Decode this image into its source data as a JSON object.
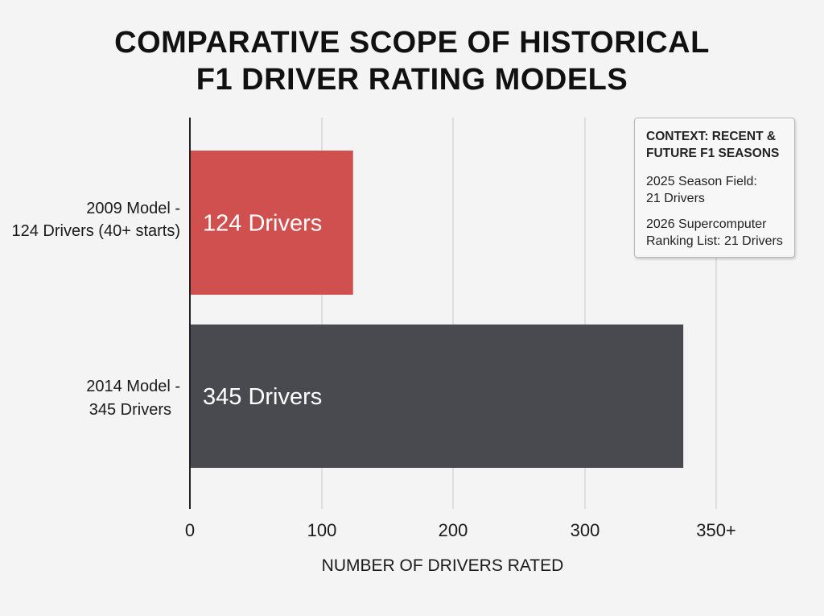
{
  "chart_data": {
    "type": "bar",
    "orientation": "horizontal",
    "title": "COMPARATIVE SCOPE OF HISTORICAL F1 DRIVER RATING MODELS",
    "title_lines": [
      "COMPARATIVE SCOPE OF HISTORICAL",
      "F1 DRIVER RATING MODELS"
    ],
    "categories": [
      {
        "line1": "2009 Model -",
        "line2": "124 Drivers (40+ starts)"
      },
      {
        "line1": "2014 Model -",
        "line2": "345 Drivers"
      }
    ],
    "values": [
      124,
      345
    ],
    "bar_labels": [
      "124 Drivers",
      "345 Drivers"
    ],
    "bar_colors": [
      "#d05050",
      "#484a4f"
    ],
    "xlabel": "NUMBER OF DRIVERS RATED",
    "xticks": [
      "0",
      "100",
      "200",
      "300",
      "350+"
    ],
    "xlim": [
      0,
      400
    ],
    "grid": true,
    "annotation": {
      "header_lines": [
        "CONTEXT: RECENT &",
        "FUTURE F1 SEASONS"
      ],
      "items": [
        {
          "line1": "2025 Season Field:",
          "line2": "21 Drivers"
        },
        {
          "line1": "2026 Supercomputer",
          "line2": "Ranking List: 21 Drivers"
        }
      ],
      "placement": "top-right"
    }
  }
}
